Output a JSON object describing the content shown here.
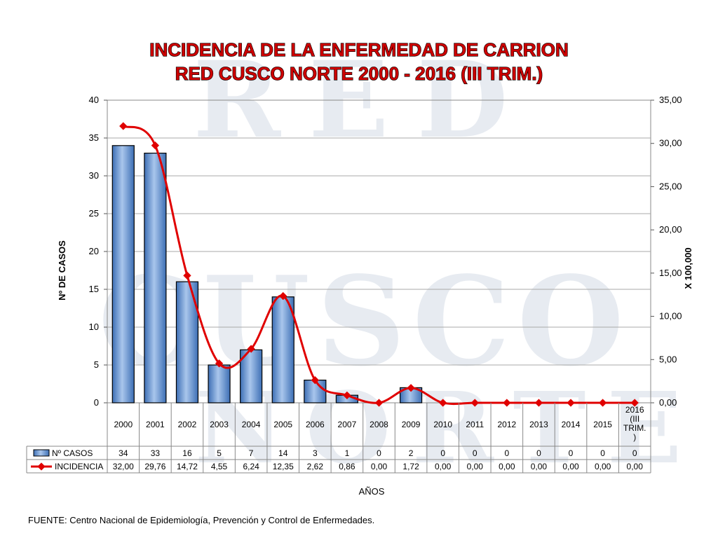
{
  "chart_data": {
    "type": "bar",
    "title_lines": [
      "INCIDENCIA DE LA ENFERMEDAD DE CARRION",
      "RED CUSCO NORTE 2000 - 2016 (III TRIM.)"
    ],
    "categories": [
      "2000",
      "2001",
      "2002",
      "2003",
      "2004",
      "2005",
      "2006",
      "2007",
      "2008",
      "2009",
      "2010",
      "2011",
      "2012",
      "2013",
      "2014",
      "2015",
      "2016 (III TRIM.)"
    ],
    "category_label_lines": [
      [
        "2000"
      ],
      [
        "2001"
      ],
      [
        "2002"
      ],
      [
        "2003"
      ],
      [
        "2004"
      ],
      [
        "2005"
      ],
      [
        "2006"
      ],
      [
        "2007"
      ],
      [
        "2008"
      ],
      [
        "2009"
      ],
      [
        "2010"
      ],
      [
        "2011"
      ],
      [
        "2012"
      ],
      [
        "2013"
      ],
      [
        "2014"
      ],
      [
        "2015"
      ],
      [
        "2016",
        "(III",
        "TRIM.",
        ")"
      ]
    ],
    "xlabel": "AÑOS",
    "ylabel": "Nº DE CASOS",
    "y2label": "X 100,000",
    "ylim": [
      0,
      40
    ],
    "yticks": [
      "0",
      "5",
      "10",
      "15",
      "20",
      "25",
      "30",
      "35",
      "40"
    ],
    "y2lim": [
      0,
      35
    ],
    "y2ticks": [
      "0,00",
      "5,00",
      "10,00",
      "15,00",
      "20,00",
      "25,00",
      "30,00",
      "35,00"
    ],
    "grid": true,
    "series": [
      {
        "name": "Nº CASOS",
        "type": "bar",
        "axis": "left",
        "color": "#5b8ccf",
        "values": [
          34,
          33,
          16,
          5,
          7,
          14,
          3,
          1,
          0,
          2,
          0,
          0,
          0,
          0,
          0,
          0,
          0
        ],
        "labels": [
          "34",
          "33",
          "16",
          "5",
          "7",
          "14",
          "3",
          "1",
          "0",
          "2",
          "0",
          "0",
          "0",
          "0",
          "0",
          "0",
          "0"
        ]
      },
      {
        "name": "INCIDENCIA",
        "type": "line",
        "axis": "right",
        "color": "#e00000",
        "values": [
          32.0,
          29.76,
          14.72,
          4.55,
          6.24,
          12.35,
          2.62,
          0.86,
          0.0,
          1.72,
          0.0,
          0.0,
          0.0,
          0.0,
          0.0,
          0.0,
          0.0
        ],
        "labels": [
          "32,00",
          "29,76",
          "14,72",
          "4,55",
          "6,24",
          "12,35",
          "2,62",
          "0,86",
          "0,00",
          "1,72",
          "0,00",
          "0,00",
          "0,00",
          "0,00",
          "0,00",
          "0,00",
          "0,00"
        ]
      }
    ]
  },
  "watermark": [
    "RED",
    "CUSCO",
    "NORTE"
  ],
  "source_note": "FUENTE: Centro Nacional de Epidemiología, Prevención y Control de Enfermedades."
}
